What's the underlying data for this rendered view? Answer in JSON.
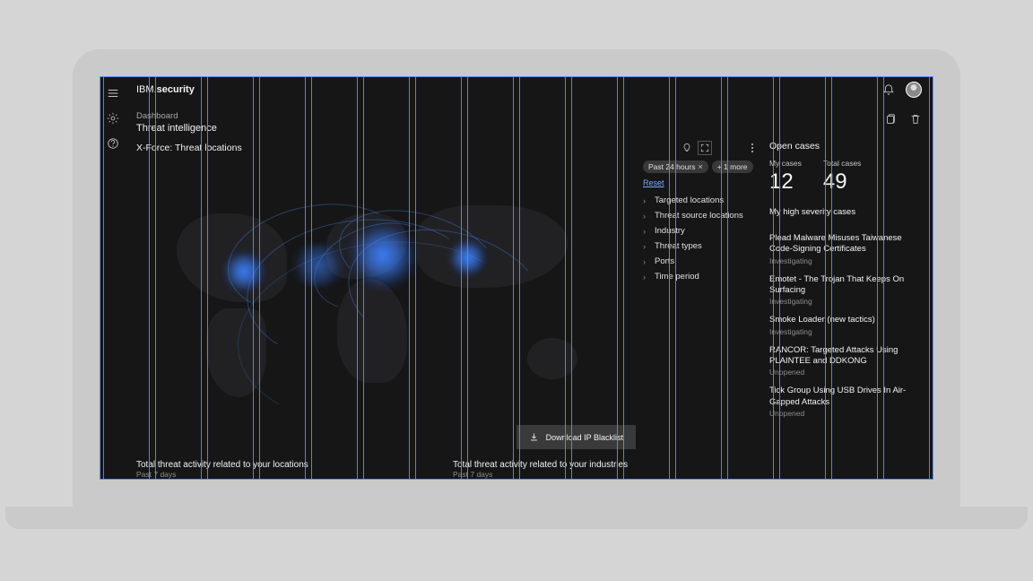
{
  "brand": {
    "prefix": "IBM.",
    "suffix": "security"
  },
  "breadcrumb": {
    "parent": "Dashboard",
    "title": "Threat intelligence"
  },
  "map_section": {
    "title": "X-Force: Threat locations",
    "filter_chips": [
      {
        "label": "Past 24 hours",
        "closable": true
      },
      {
        "label": "+ 1 more",
        "closable": false
      }
    ],
    "reset_label": "Reset",
    "filters": [
      {
        "label": "Targeted locations"
      },
      {
        "label": "Threat source locations"
      },
      {
        "label": "Industry"
      },
      {
        "label": "Threat types"
      },
      {
        "label": "Ports"
      },
      {
        "label": "Time period"
      }
    ],
    "download_label": "Download IP Blacklist"
  },
  "bottom_cards": [
    {
      "title": "Total threat activity related to your locations",
      "sub": "Past 7 days"
    },
    {
      "title": "Total threat activity related to your industries",
      "sub": "Past 7 days"
    }
  ],
  "open_cases": {
    "title": "Open cases",
    "metrics": [
      {
        "label": "My cases",
        "value": "12"
      },
      {
        "label": "Total cases",
        "value": "49"
      }
    ],
    "sub_section": "My high severity cases",
    "cases": [
      {
        "title": "Plead Malware Misuses Taiwanese Code-Signing Certificates",
        "status": "Investigating"
      },
      {
        "title": "Emotet - The Trojan That Keeps On Surfacing",
        "status": "Investigating"
      },
      {
        "title": "Smoke Loader (new tactics)",
        "status": "Investigating"
      },
      {
        "title": "RANCOR: Targeted Attacks Using PLAINTEE and DDKONG",
        "status": "Unopened"
      },
      {
        "title": "Tick Group Using USB Drives In Air-Gapped Attacks",
        "status": "Unopened"
      }
    ]
  },
  "colors": {
    "bg": "#161616",
    "grid_line": "#5a8eff",
    "glow": "#3c82ff",
    "link": "#78a9ff",
    "chip_bg": "#393939",
    "text_muted": "#8d8d8d",
    "text": "#f4f4f4"
  },
  "grid_columns": 16
}
